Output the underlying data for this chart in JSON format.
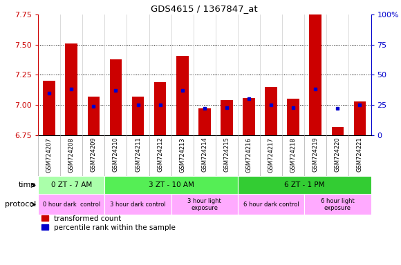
{
  "title": "GDS4615 / 1367847_at",
  "samples": [
    "GSM724207",
    "GSM724208",
    "GSM724209",
    "GSM724210",
    "GSM724211",
    "GSM724212",
    "GSM724213",
    "GSM724214",
    "GSM724215",
    "GSM724216",
    "GSM724217",
    "GSM724218",
    "GSM724219",
    "GSM724220",
    "GSM724221"
  ],
  "transformed_count": [
    7.2,
    7.51,
    7.07,
    7.38,
    7.07,
    7.19,
    7.41,
    6.97,
    7.04,
    7.06,
    7.15,
    7.05,
    7.84,
    6.82,
    7.03
  ],
  "percentile_rank": [
    35,
    38,
    24,
    37,
    25,
    25,
    37,
    22,
    23,
    30,
    25,
    23,
    38,
    22,
    25
  ],
  "ymin": 6.75,
  "ymax": 7.75,
  "yticks": [
    6.75,
    7.0,
    7.25,
    7.5,
    7.75
  ],
  "yright_min": 0,
  "yright_max": 100,
  "yright_ticks": [
    0,
    25,
    50,
    75,
    100
  ],
  "bar_color": "#cc0000",
  "dot_color": "#0000cc",
  "time_defs": [
    {
      "label": "0 ZT - 7 AM",
      "cols": [
        0,
        3
      ],
      "color": "#aaffaa"
    },
    {
      "label": "3 ZT - 10 AM",
      "cols": [
        3,
        9
      ],
      "color": "#55ee55"
    },
    {
      "label": "6 ZT - 1 PM",
      "cols": [
        9,
        15
      ],
      "color": "#33cc33"
    }
  ],
  "proto_defs": [
    {
      "label": "0 hour dark  control",
      "cols": [
        0,
        3
      ],
      "color": "#ffaaff"
    },
    {
      "label": "3 hour dark control",
      "cols": [
        3,
        6
      ],
      "color": "#ffaaff"
    },
    {
      "label": "3 hour light\nexposure",
      "cols": [
        6,
        9
      ],
      "color": "#ffaaff"
    },
    {
      "label": "6 hour dark control",
      "cols": [
        9,
        12
      ],
      "color": "#ffaaff"
    },
    {
      "label": "6 hour light\nexposure",
      "cols": [
        12,
        15
      ],
      "color": "#ffaaff"
    }
  ]
}
